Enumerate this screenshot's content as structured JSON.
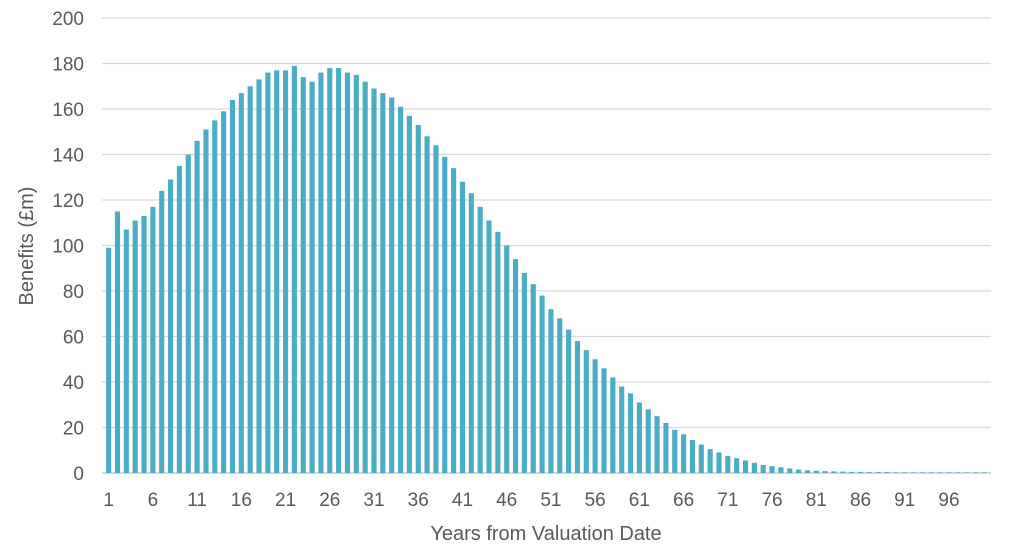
{
  "chart_data": {
    "type": "bar",
    "title": "",
    "xlabel": "Years from Valuation Date",
    "ylabel": "Benefits (£m)",
    "ylim": [
      0,
      200
    ],
    "yticks": [
      0,
      20,
      40,
      60,
      80,
      100,
      120,
      140,
      160,
      180,
      200
    ],
    "xtick_labels": [
      "1",
      "6",
      "11",
      "16",
      "21",
      "26",
      "31",
      "36",
      "41",
      "46",
      "51",
      "56",
      "61",
      "66",
      "71",
      "76",
      "81",
      "86",
      "91",
      "96"
    ],
    "grid": true,
    "legend": "none",
    "bar_color": "#4bacc6",
    "categories": [
      1,
      2,
      3,
      4,
      5,
      6,
      7,
      8,
      9,
      10,
      11,
      12,
      13,
      14,
      15,
      16,
      17,
      18,
      19,
      20,
      21,
      22,
      23,
      24,
      25,
      26,
      27,
      28,
      29,
      30,
      31,
      32,
      33,
      34,
      35,
      36,
      37,
      38,
      39,
      40,
      41,
      42,
      43,
      44,
      45,
      46,
      47,
      48,
      49,
      50,
      51,
      52,
      53,
      54,
      55,
      56,
      57,
      58,
      59,
      60,
      61,
      62,
      63,
      64,
      65,
      66,
      67,
      68,
      69,
      70,
      71,
      72,
      73,
      74,
      75,
      76,
      77,
      78,
      79,
      80,
      81,
      82,
      83,
      84,
      85,
      86,
      87,
      88,
      89,
      90,
      91,
      92,
      93,
      94,
      95,
      96,
      97,
      98,
      99,
      100
    ],
    "values": [
      99,
      115,
      107,
      111,
      113,
      117,
      124,
      129,
      135,
      140,
      146,
      151,
      155,
      159,
      164,
      167,
      170,
      173,
      176,
      177,
      177,
      179,
      174,
      172,
      176,
      178,
      178,
      176,
      175,
      172,
      169,
      167,
      165,
      161,
      157,
      153,
      148,
      144,
      139,
      134,
      128,
      123,
      117,
      111,
      106,
      100,
      94,
      88,
      83,
      78,
      72,
      68,
      63,
      58,
      54,
      50,
      46,
      42,
      38,
      35,
      31,
      28,
      25,
      22,
      19,
      17,
      14.5,
      12.5,
      10.5,
      9,
      7.5,
      6.5,
      5.5,
      4.5,
      3.5,
      3,
      2.5,
      2,
      1.5,
      1.2,
      1,
      0.8,
      0.7,
      0.6,
      0.5,
      0.5,
      0.4,
      0.4,
      0.4,
      0.3,
      0.3,
      0.3,
      0.3,
      0.3,
      0.3,
      0.3,
      0.3,
      0.3,
      0.3,
      0.3
    ]
  }
}
